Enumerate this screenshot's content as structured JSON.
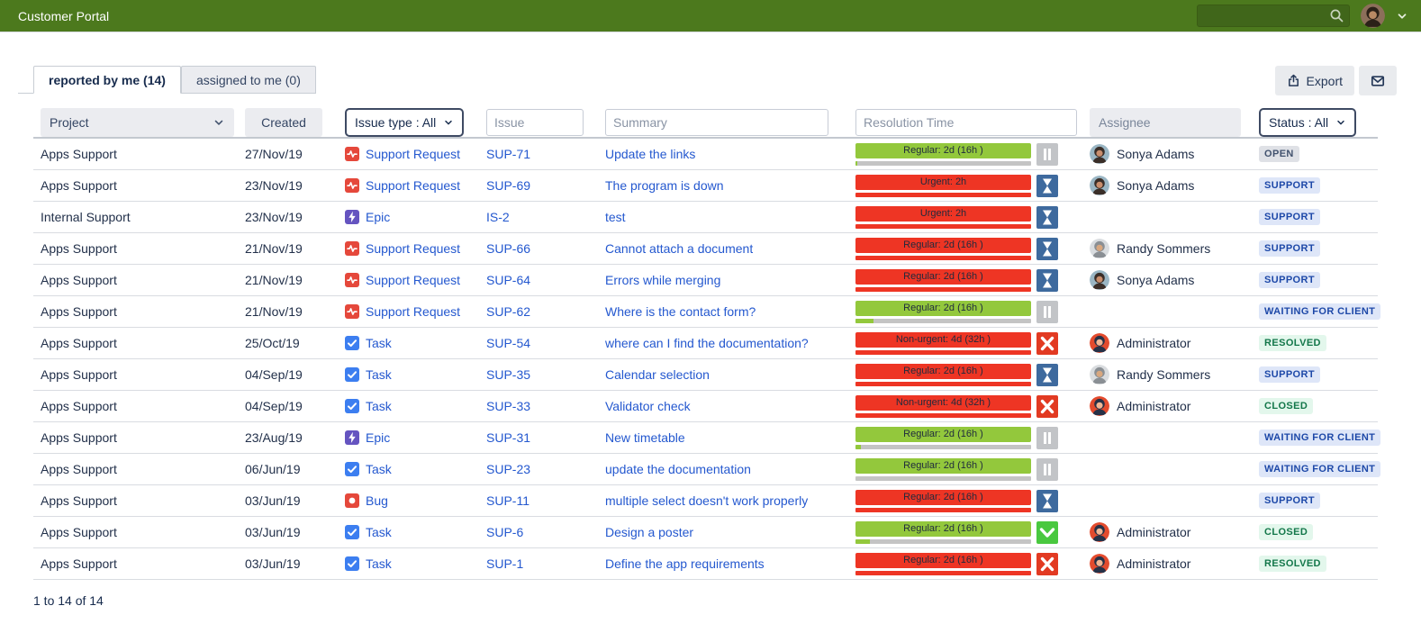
{
  "header": {
    "title": "Customer Portal"
  },
  "tabs": [
    {
      "label": "reported by me (14)",
      "active": true
    },
    {
      "label": "assigned to me (0)",
      "active": false
    }
  ],
  "toolbar": {
    "export_label": "Export"
  },
  "filters": {
    "project_label": "Project",
    "created_label": "Created",
    "issue_type_label": "Issue type : All",
    "issue_placeholder": "Issue",
    "summary_placeholder": "Summary",
    "resolution_placeholder": "Resolution Time",
    "assignee_label": "Assignee",
    "status_label": "Status : All"
  },
  "footer": {
    "range": "1 to 14 of 14"
  },
  "colors": {
    "topbar_green": "#4c791d",
    "link_blue": "#2458cf",
    "sla_green": "#93c83c",
    "sla_red": "#ee3524",
    "track_gray": "#c4c4c4",
    "sla_icons": {
      "pause": "#c2c4c7",
      "hourglass": "#3e6a9e",
      "x": "#e23a22",
      "check": "#49c83f"
    },
    "type_icons": {
      "support": "#e5483b",
      "epic": "#6554c0",
      "task": "#3c7ef0",
      "bug": "#e5483b"
    },
    "badge": {
      "gray": {
        "bg": "#dfe1e6",
        "fg": "#42526e"
      },
      "blue": {
        "bg": "#dee6f8",
        "fg": "#1d48a8"
      },
      "green": {
        "bg": "#e3f7ec",
        "fg": "#13774a"
      }
    }
  },
  "avatars": {
    "user": {
      "bg": "#8c6f5a",
      "hair": "#2b2118",
      "skin": "#b98a64"
    },
    "sonya": {
      "bg": "#9ab6c4",
      "hair": "#3a2e28",
      "skin": "#c98e6d"
    },
    "randy": {
      "bg": "#d9dcdf",
      "hair": "#8a8f94",
      "skin": "#d8a77f"
    },
    "admin": {
      "bg": "#e34b2e",
      "hair": "#263147",
      "skin": "#f2b695"
    }
  },
  "rows": [
    {
      "project": "Apps Support",
      "created": "27/Nov/19",
      "type_key": "support",
      "issue_type": "Support Request",
      "issue_key": "SUP-71",
      "summary": "Update the links",
      "sla": {
        "label": "Regular: 2d (16h )",
        "color": "green",
        "icon": "pause",
        "progress": 1
      },
      "assignee": "Sonya Adams",
      "avatar": "sonya",
      "status": "OPEN",
      "status_kind": "gray"
    },
    {
      "project": "Apps Support",
      "created": "23/Nov/19",
      "type_key": "support",
      "issue_type": "Support Request",
      "issue_key": "SUP-69",
      "summary": "The program is down",
      "sla": {
        "label": "Urgent: 2h",
        "color": "red",
        "icon": "hourglass",
        "progress": 100
      },
      "assignee": "Sonya Adams",
      "avatar": "sonya",
      "status": "SUPPORT",
      "status_kind": "blue"
    },
    {
      "project": "Internal Support",
      "created": "23/Nov/19",
      "type_key": "epic",
      "issue_type": "Epic",
      "issue_key": "IS-2",
      "summary": "test",
      "sla": {
        "label": "Urgent: 2h",
        "color": "red",
        "icon": "hourglass",
        "progress": 100
      },
      "assignee": "",
      "avatar": "",
      "status": "SUPPORT",
      "status_kind": "blue"
    },
    {
      "project": "Apps Support",
      "created": "21/Nov/19",
      "type_key": "support",
      "issue_type": "Support Request",
      "issue_key": "SUP-66",
      "summary": "Cannot attach a document",
      "sla": {
        "label": "Regular: 2d (16h )",
        "color": "red",
        "icon": "hourglass",
        "progress": 100
      },
      "assignee": "Randy Sommers",
      "avatar": "randy",
      "status": "SUPPORT",
      "status_kind": "blue"
    },
    {
      "project": "Apps Support",
      "created": "21/Nov/19",
      "type_key": "support",
      "issue_type": "Support Request",
      "issue_key": "SUP-64",
      "summary": "Errors while merging",
      "sla": {
        "label": "Regular: 2d (16h )",
        "color": "red",
        "icon": "hourglass",
        "progress": 100
      },
      "assignee": "Sonya Adams",
      "avatar": "sonya",
      "status": "SUPPORT",
      "status_kind": "blue"
    },
    {
      "project": "Apps Support",
      "created": "21/Nov/19",
      "type_key": "support",
      "issue_type": "Support Request",
      "issue_key": "SUP-62",
      "summary": "Where is the contact form?",
      "sla": {
        "label": "Regular: 2d (16h )",
        "color": "green",
        "icon": "pause",
        "progress": 10
      },
      "assignee": "",
      "avatar": "",
      "status": "WAITING FOR CLIENT",
      "status_kind": "blue"
    },
    {
      "project": "Apps Support",
      "created": "25/Oct/19",
      "type_key": "task",
      "issue_type": "Task",
      "issue_key": "SUP-54",
      "summary": "where can I find the documentation?",
      "sla": {
        "label": "Non-urgent: 4d (32h )",
        "color": "red",
        "icon": "x",
        "progress": 100
      },
      "assignee": "Administrator",
      "avatar": "admin",
      "status": "RESOLVED",
      "status_kind": "green"
    },
    {
      "project": "Apps Support",
      "created": "04/Sep/19",
      "type_key": "task",
      "issue_type": "Task",
      "issue_key": "SUP-35",
      "summary": "Calendar selection",
      "sla": {
        "label": "Regular: 2d (16h )",
        "color": "red",
        "icon": "hourglass",
        "progress": 100
      },
      "assignee": "Randy Sommers",
      "avatar": "randy",
      "status": "SUPPORT",
      "status_kind": "blue"
    },
    {
      "project": "Apps Support",
      "created": "04/Sep/19",
      "type_key": "task",
      "issue_type": "Task",
      "issue_key": "SUP-33",
      "summary": "Validator check",
      "sla": {
        "label": "Non-urgent: 4d (32h )",
        "color": "red",
        "icon": "x",
        "progress": 100
      },
      "assignee": "Administrator",
      "avatar": "admin",
      "status": "CLOSED",
      "status_kind": "green"
    },
    {
      "project": "Apps Support",
      "created": "23/Aug/19",
      "type_key": "epic",
      "issue_type": "Epic",
      "issue_key": "SUP-31",
      "summary": "New timetable",
      "sla": {
        "label": "Regular: 2d (16h )",
        "color": "green",
        "icon": "pause",
        "progress": 3
      },
      "assignee": "",
      "avatar": "",
      "status": "WAITING FOR CLIENT",
      "status_kind": "blue"
    },
    {
      "project": "Apps Support",
      "created": "06/Jun/19",
      "type_key": "task",
      "issue_type": "Task",
      "issue_key": "SUP-23",
      "summary": "update the documentation",
      "sla": {
        "label": "Regular: 2d (16h )",
        "color": "green",
        "icon": "pause",
        "progress": 0
      },
      "assignee": "",
      "avatar": "",
      "status": "WAITING FOR CLIENT",
      "status_kind": "blue"
    },
    {
      "project": "Apps Support",
      "created": "03/Jun/19",
      "type_key": "bug",
      "issue_type": "Bug",
      "issue_key": "SUP-11",
      "summary": "multiple select doesn't work properly",
      "sla": {
        "label": "Regular: 2d (16h )",
        "color": "red",
        "icon": "hourglass",
        "progress": 100
      },
      "assignee": "",
      "avatar": "",
      "status": "SUPPORT",
      "status_kind": "blue"
    },
    {
      "project": "Apps Support",
      "created": "03/Jun/19",
      "type_key": "task",
      "issue_type": "Task",
      "issue_key": "SUP-6",
      "summary": "Design a poster",
      "sla": {
        "label": "Regular: 2d (16h )",
        "color": "green",
        "icon": "check",
        "progress": 8
      },
      "assignee": "Administrator",
      "avatar": "admin",
      "status": "CLOSED",
      "status_kind": "green"
    },
    {
      "project": "Apps Support",
      "created": "03/Jun/19",
      "type_key": "task",
      "issue_type": "Task",
      "issue_key": "SUP-1",
      "summary": "Define the app requirements",
      "sla": {
        "label": "Regular: 2d (16h )",
        "color": "red",
        "icon": "x",
        "progress": 100
      },
      "assignee": "Administrator",
      "avatar": "admin",
      "status": "RESOLVED",
      "status_kind": "green"
    }
  ]
}
